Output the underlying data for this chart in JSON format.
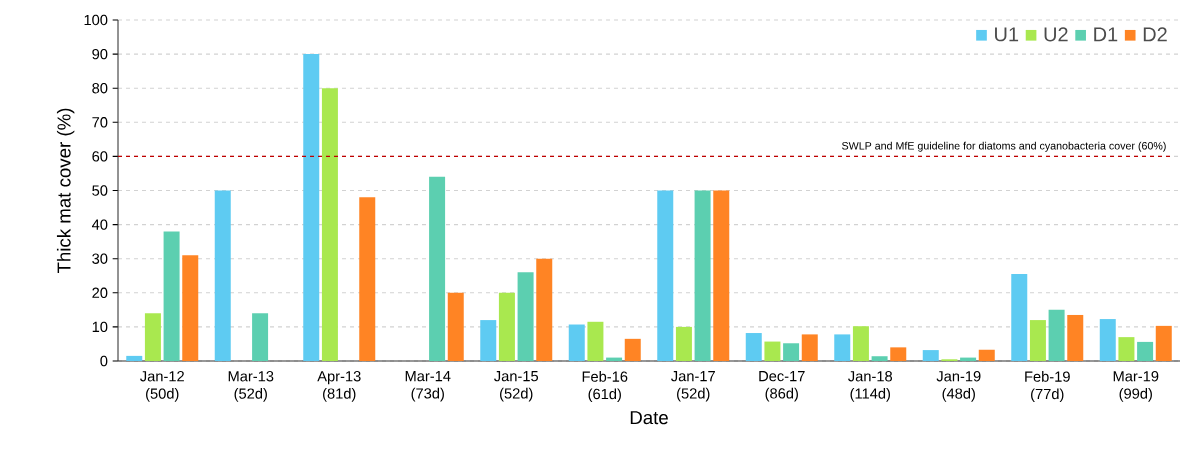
{
  "chart_data": {
    "type": "bar",
    "xlabel": "Date",
    "ylabel": "Thick mat cover (%)",
    "categories": [
      "Jan-12 (50d)",
      "Mar-13 (52d)",
      "Apr-13 (81d)",
      "Mar-14 (73d)",
      "Jan-15 (52d)",
      "Feb-16 (61d)",
      "Jan-17 (52d)",
      "Dec-17 (86d)",
      "Jan-18 (114d)",
      "Jan-19 (48d)",
      "Feb-19 (77d)",
      "Mar-19 (99d)"
    ],
    "series": [
      {
        "name": "U1",
        "color": "#5ecbf2",
        "values": [
          1.5,
          50,
          90,
          null,
          12,
          10.7,
          50,
          8.2,
          7.8,
          3.2,
          25.5,
          12.3
        ]
      },
      {
        "name": "U2",
        "color": "#a9e84f",
        "values": [
          14,
          null,
          80,
          null,
          20,
          11.5,
          10,
          5.7,
          10.2,
          0.5,
          12,
          7
        ]
      },
      {
        "name": "D1",
        "color": "#5ccfb0",
        "values": [
          38,
          14,
          null,
          54,
          26,
          1,
          50,
          5.2,
          1.4,
          1,
          15,
          5.6
        ]
      },
      {
        "name": "D2",
        "color": "#ff8424",
        "values": [
          31,
          null,
          48,
          20,
          30,
          6.5,
          50,
          7.8,
          4,
          3.3,
          13.5,
          10.3
        ]
      }
    ],
    "ylim": [
      0,
      100
    ],
    "yticks": [
      0,
      10,
      20,
      30,
      40,
      50,
      60,
      70,
      80,
      90,
      100
    ],
    "grid": "y",
    "legend": "top right",
    "ref_lines": [
      {
        "axis": "y",
        "value": 60,
        "label": "SWLP and MfE guideline for diatoms and cyanobacteria cover (60%)",
        "color": "#c00000",
        "line_style": "dashed"
      }
    ]
  }
}
